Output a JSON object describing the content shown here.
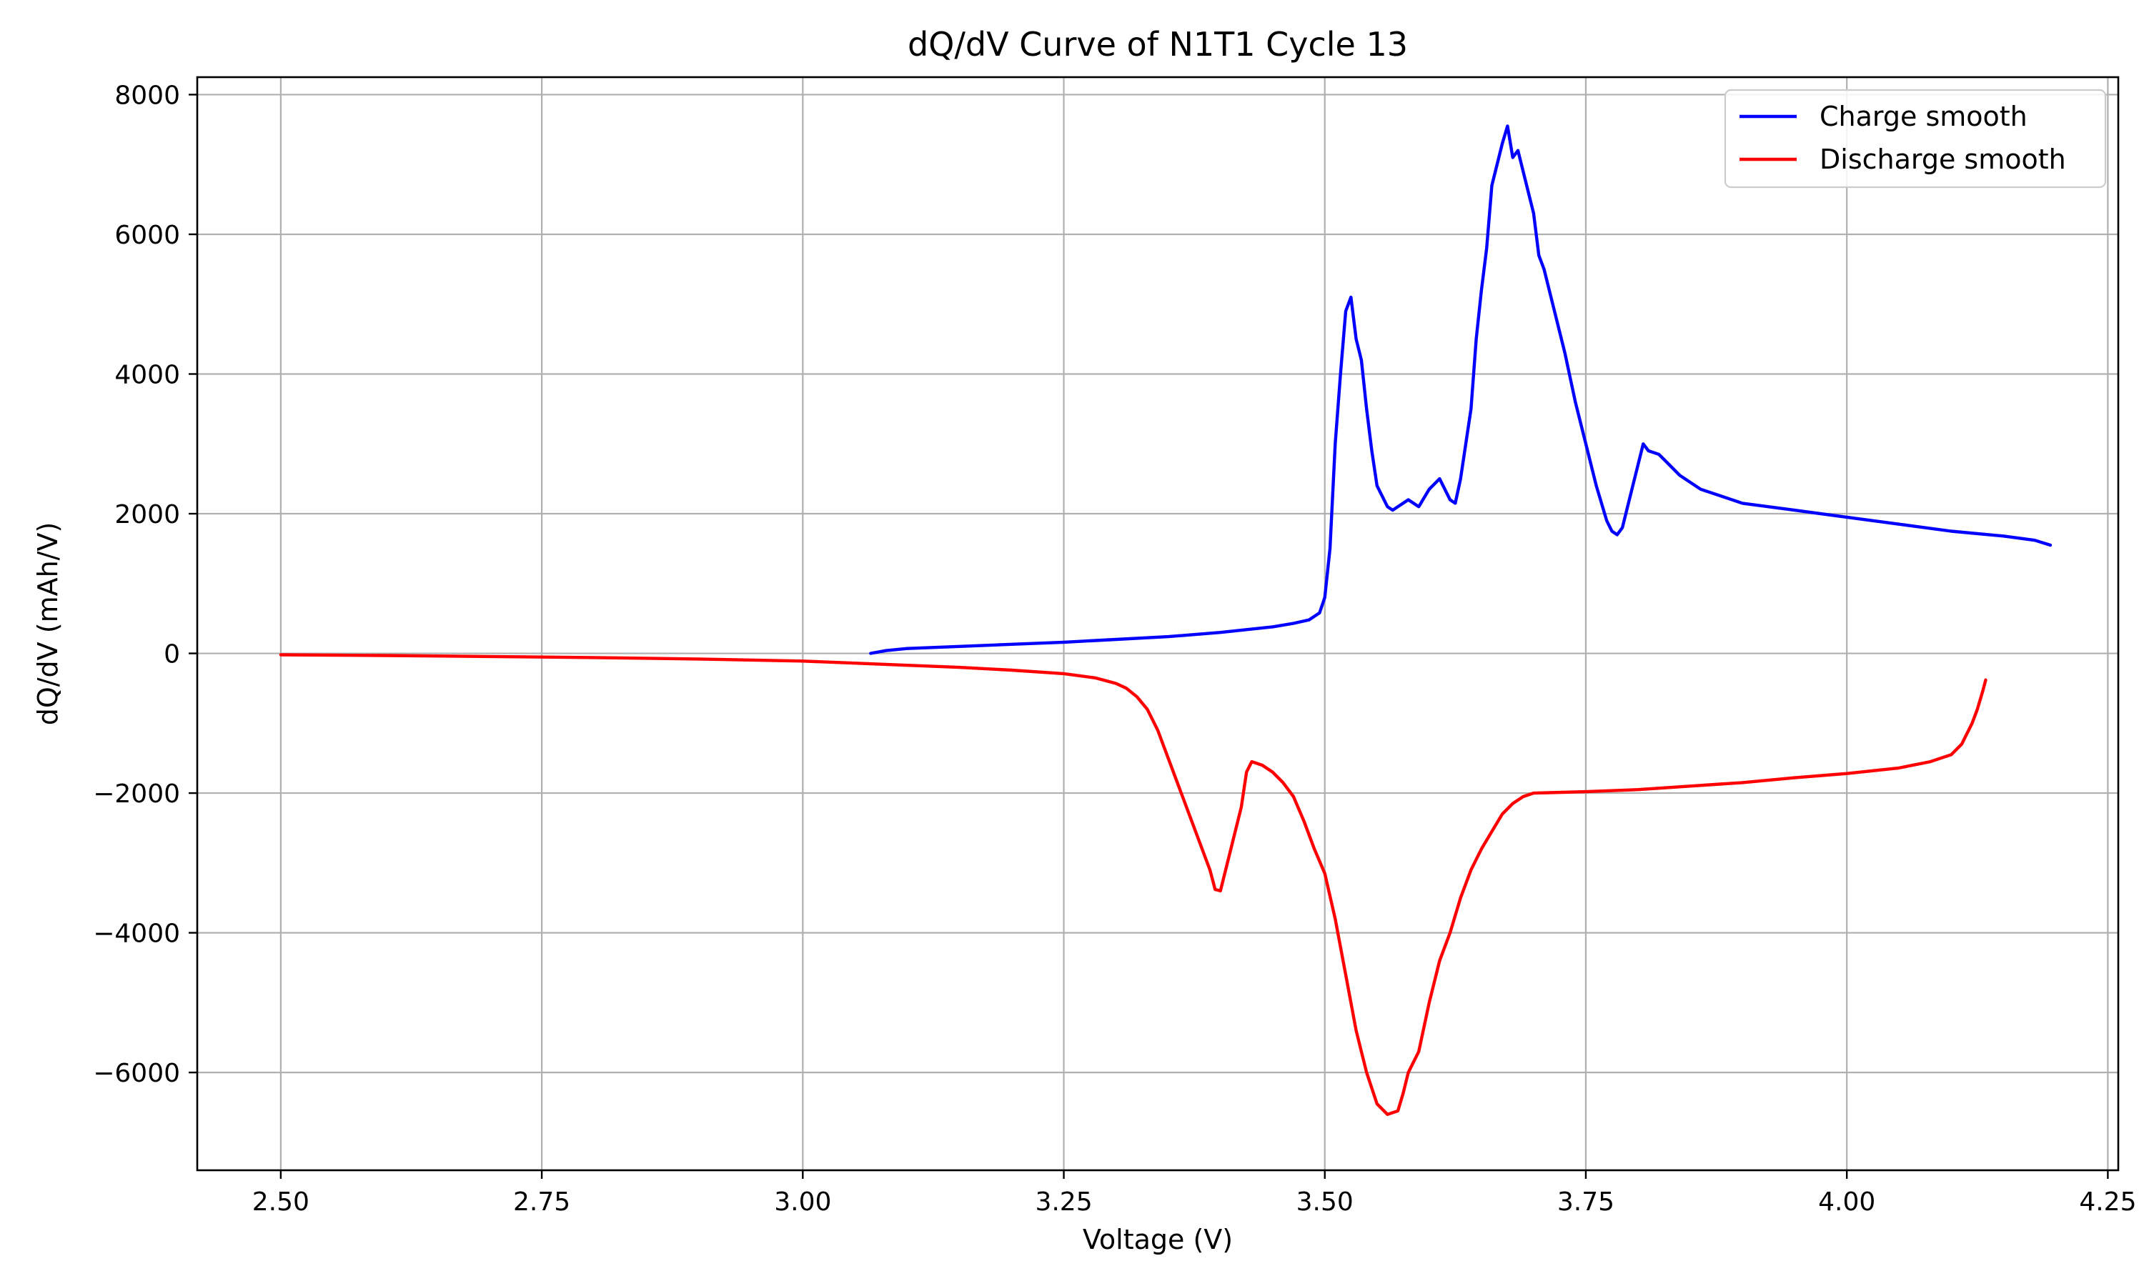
{
  "chart_data": {
    "type": "line",
    "title": "dQ/dV Curve of N1T1 Cycle 13",
    "xlabel": "Voltage (V)",
    "ylabel": "dQ/dV (mAh/V)",
    "xlim": [
      2.42,
      4.26
    ],
    "ylim": [
      -7400,
      8250
    ],
    "xticks": [
      2.5,
      2.75,
      3.0,
      3.25,
      3.5,
      3.75,
      4.0,
      4.25
    ],
    "xtick_labels": [
      "2.50",
      "2.75",
      "3.00",
      "3.25",
      "3.50",
      "3.75",
      "4.00",
      "4.25"
    ],
    "yticks": [
      -6000,
      -4000,
      -2000,
      0,
      2000,
      4000,
      6000,
      8000
    ],
    "ytick_labels": [
      "−6000",
      "−4000",
      "−2000",
      "0",
      "2000",
      "4000",
      "6000",
      "8000"
    ],
    "grid": true,
    "legend": "top-right",
    "series": [
      {
        "name": "Charge smooth",
        "color": "#0000ff",
        "points": [
          [
            3.065,
            0
          ],
          [
            3.08,
            40
          ],
          [
            3.1,
            70
          ],
          [
            3.15,
            100
          ],
          [
            3.2,
            130
          ],
          [
            3.25,
            160
          ],
          [
            3.3,
            200
          ],
          [
            3.35,
            240
          ],
          [
            3.4,
            300
          ],
          [
            3.45,
            380
          ],
          [
            3.47,
            430
          ],
          [
            3.485,
            480
          ],
          [
            3.495,
            580
          ],
          [
            3.5,
            800
          ],
          [
            3.505,
            1500
          ],
          [
            3.51,
            3000
          ],
          [
            3.515,
            4000
          ],
          [
            3.52,
            4900
          ],
          [
            3.525,
            5100
          ],
          [
            3.53,
            4500
          ],
          [
            3.535,
            4200
          ],
          [
            3.54,
            3500
          ],
          [
            3.545,
            2900
          ],
          [
            3.55,
            2400
          ],
          [
            3.56,
            2100
          ],
          [
            3.565,
            2050
          ],
          [
            3.57,
            2100
          ],
          [
            3.58,
            2200
          ],
          [
            3.59,
            2100
          ],
          [
            3.6,
            2350
          ],
          [
            3.61,
            2500
          ],
          [
            3.62,
            2200
          ],
          [
            3.625,
            2150
          ],
          [
            3.63,
            2500
          ],
          [
            3.635,
            3000
          ],
          [
            3.64,
            3500
          ],
          [
            3.645,
            4500
          ],
          [
            3.65,
            5200
          ],
          [
            3.655,
            5800
          ],
          [
            3.66,
            6700
          ],
          [
            3.665,
            7000
          ],
          [
            3.67,
            7300
          ],
          [
            3.675,
            7550
          ],
          [
            3.68,
            7100
          ],
          [
            3.685,
            7200
          ],
          [
            3.69,
            6900
          ],
          [
            3.695,
            6600
          ],
          [
            3.7,
            6300
          ],
          [
            3.705,
            5700
          ],
          [
            3.71,
            5500
          ],
          [
            3.72,
            4900
          ],
          [
            3.73,
            4300
          ],
          [
            3.74,
            3600
          ],
          [
            3.75,
            3000
          ],
          [
            3.76,
            2400
          ],
          [
            3.77,
            1900
          ],
          [
            3.775,
            1750
          ],
          [
            3.78,
            1700
          ],
          [
            3.785,
            1800
          ],
          [
            3.79,
            2100
          ],
          [
            3.8,
            2700
          ],
          [
            3.805,
            3000
          ],
          [
            3.81,
            2900
          ],
          [
            3.82,
            2850
          ],
          [
            3.83,
            2700
          ],
          [
            3.84,
            2550
          ],
          [
            3.86,
            2350
          ],
          [
            3.88,
            2250
          ],
          [
            3.9,
            2150
          ],
          [
            3.95,
            2050
          ],
          [
            4.0,
            1950
          ],
          [
            4.05,
            1850
          ],
          [
            4.1,
            1750
          ],
          [
            4.15,
            1680
          ],
          [
            4.18,
            1620
          ],
          [
            4.195,
            1550
          ]
        ]
      },
      {
        "name": "Discharge smooth",
        "color": "#ff0000",
        "points": [
          [
            2.5,
            -20
          ],
          [
            2.6,
            -30
          ],
          [
            2.7,
            -45
          ],
          [
            2.8,
            -60
          ],
          [
            2.9,
            -80
          ],
          [
            3.0,
            -110
          ],
          [
            3.05,
            -140
          ],
          [
            3.1,
            -170
          ],
          [
            3.15,
            -200
          ],
          [
            3.2,
            -240
          ],
          [
            3.25,
            -290
          ],
          [
            3.28,
            -350
          ],
          [
            3.3,
            -430
          ],
          [
            3.31,
            -500
          ],
          [
            3.32,
            -620
          ],
          [
            3.33,
            -800
          ],
          [
            3.34,
            -1100
          ],
          [
            3.35,
            -1500
          ],
          [
            3.36,
            -1900
          ],
          [
            3.37,
            -2300
          ],
          [
            3.38,
            -2700
          ],
          [
            3.39,
            -3100
          ],
          [
            3.395,
            -3380
          ],
          [
            3.4,
            -3400
          ],
          [
            3.41,
            -2800
          ],
          [
            3.42,
            -2200
          ],
          [
            3.425,
            -1700
          ],
          [
            3.43,
            -1550
          ],
          [
            3.44,
            -1600
          ],
          [
            3.45,
            -1700
          ],
          [
            3.46,
            -1850
          ],
          [
            3.47,
            -2050
          ],
          [
            3.48,
            -2400
          ],
          [
            3.49,
            -2800
          ],
          [
            3.5,
            -3150
          ],
          [
            3.51,
            -3800
          ],
          [
            3.52,
            -4600
          ],
          [
            3.53,
            -5400
          ],
          [
            3.54,
            -6000
          ],
          [
            3.55,
            -6450
          ],
          [
            3.56,
            -6600
          ],
          [
            3.57,
            -6550
          ],
          [
            3.575,
            -6300
          ],
          [
            3.58,
            -6000
          ],
          [
            3.59,
            -5700
          ],
          [
            3.6,
            -5000
          ],
          [
            3.61,
            -4400
          ],
          [
            3.62,
            -4000
          ],
          [
            3.63,
            -3500
          ],
          [
            3.64,
            -3100
          ],
          [
            3.65,
            -2800
          ],
          [
            3.66,
            -2550
          ],
          [
            3.67,
            -2300
          ],
          [
            3.68,
            -2150
          ],
          [
            3.69,
            -2050
          ],
          [
            3.7,
            -2000
          ],
          [
            3.75,
            -1980
          ],
          [
            3.8,
            -1950
          ],
          [
            3.85,
            -1900
          ],
          [
            3.9,
            -1850
          ],
          [
            3.95,
            -1780
          ],
          [
            4.0,
            -1720
          ],
          [
            4.05,
            -1640
          ],
          [
            4.08,
            -1550
          ],
          [
            4.1,
            -1450
          ],
          [
            4.11,
            -1300
          ],
          [
            4.12,
            -1000
          ],
          [
            4.125,
            -800
          ],
          [
            4.13,
            -550
          ],
          [
            4.133,
            -380
          ]
        ]
      }
    ]
  }
}
